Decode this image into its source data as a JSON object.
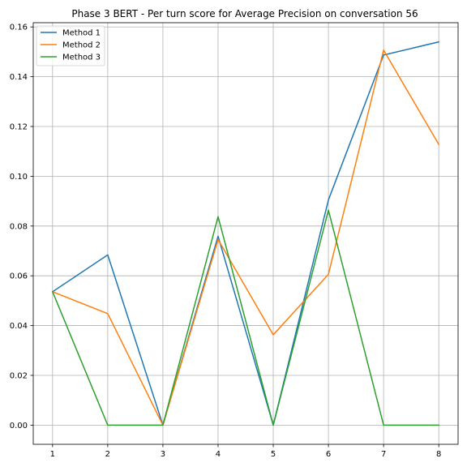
{
  "chart_data": {
    "type": "line",
    "title": "Phase 3 BERT - Per turn score for Average Precision on conversation 56",
    "xlabel": "",
    "ylabel": "",
    "x": [
      1,
      2,
      3,
      4,
      5,
      6,
      7,
      8
    ],
    "xlim": [
      0.65,
      8.35
    ],
    "ylim": [
      -0.0077,
      0.1617
    ],
    "x_ticks": [
      "1",
      "2",
      "3",
      "4",
      "5",
      "6",
      "7",
      "8"
    ],
    "y_ticks": [
      "0.00",
      "0.02",
      "0.04",
      "0.06",
      "0.08",
      "0.10",
      "0.12",
      "0.14",
      "0.16"
    ],
    "y_tick_values": [
      0.0,
      0.02,
      0.04,
      0.06,
      0.08,
      0.1,
      0.12,
      0.14,
      0.16
    ],
    "grid": true,
    "legend_position": "top-left",
    "series": [
      {
        "name": "Method 1",
        "color": "#1f77b4",
        "values": [
          0.0536,
          0.0684,
          0.0,
          0.0759,
          0.0,
          0.0905,
          0.1487,
          0.154
        ]
      },
      {
        "name": "Method 2",
        "color": "#ff7f0e",
        "values": [
          0.0536,
          0.0448,
          0.0,
          0.0746,
          0.0363,
          0.0606,
          0.1507,
          0.1128
        ]
      },
      {
        "name": "Method 3",
        "color": "#2ca02c",
        "values": [
          0.0536,
          0.0,
          0.0,
          0.0838,
          0.0,
          0.0864,
          0.0,
          0.0
        ]
      }
    ]
  }
}
